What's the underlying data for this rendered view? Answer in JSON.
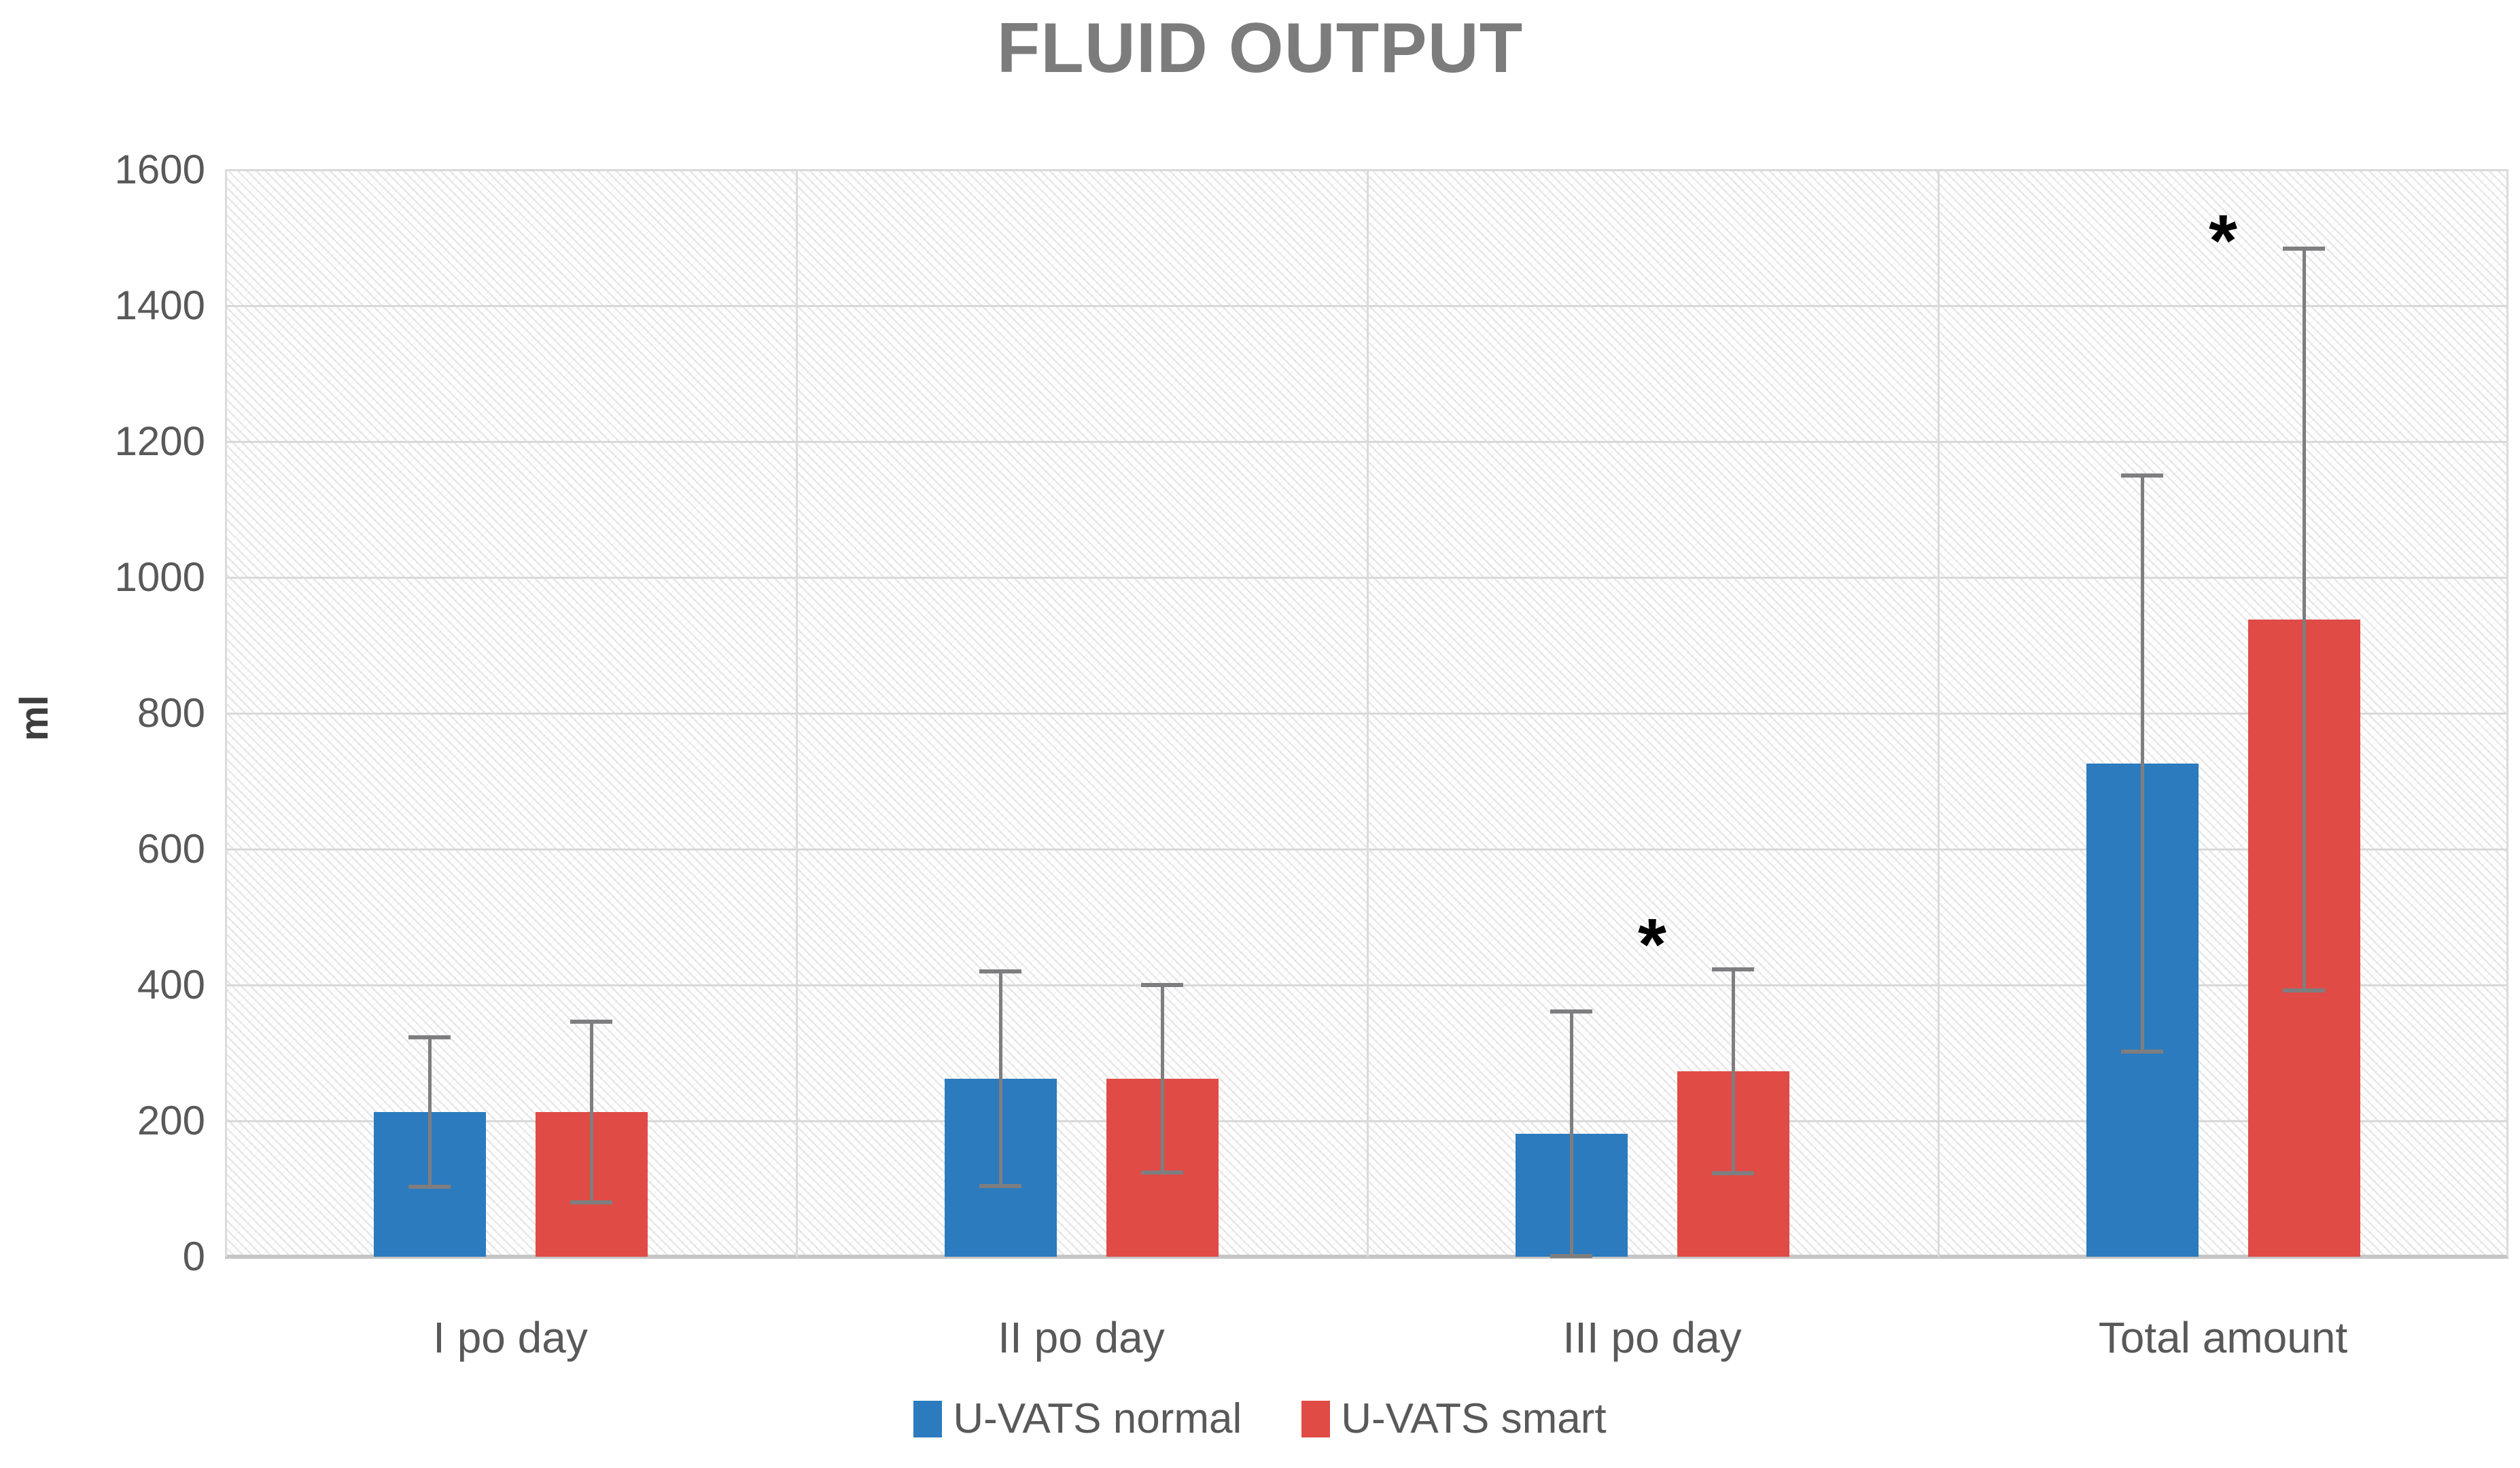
{
  "chart_data": {
    "type": "bar",
    "title": "FLUID OUTPUT",
    "y_axis": {
      "label": "ml",
      "min": 0,
      "max": 1600,
      "tick_step": 200,
      "ticks": [
        0,
        200,
        400,
        600,
        800,
        1000,
        1200,
        1400,
        1600
      ]
    },
    "categories": [
      "I po day",
      "II po day",
      "III po day",
      "Total amount"
    ],
    "series": [
      {
        "name": "U-VATS normal",
        "color": "#2b7bbe",
        "values": [
          213,
          262,
          181,
          726
        ],
        "error": [
          110,
          158,
          180,
          424
        ]
      },
      {
        "name": "U-VATS smart",
        "color": "#e04b45",
        "values": [
          213,
          262,
          273,
          938
        ],
        "error": [
          133,
          138,
          150,
          546
        ]
      }
    ],
    "error_bars": {
      "style": "plus-minus",
      "color": "#7e7e80"
    },
    "annotations": [
      {
        "symbol": "*",
        "category": "III po day",
        "category_index": 2,
        "y": 476
      },
      {
        "symbol": "*",
        "category": "Total amount",
        "category_index": 3,
        "y": 1512
      }
    ],
    "legend_position": "bottom-center",
    "grid": true,
    "plot_background": "diagonal-hatch"
  },
  "colors": {
    "title_text": "#7c7c7c",
    "tick_text": "#595959",
    "gridline": "#d9d9d9",
    "axis_line": "#c6c6c6",
    "error_bar": "#7e7e80",
    "significance": "#000000"
  }
}
